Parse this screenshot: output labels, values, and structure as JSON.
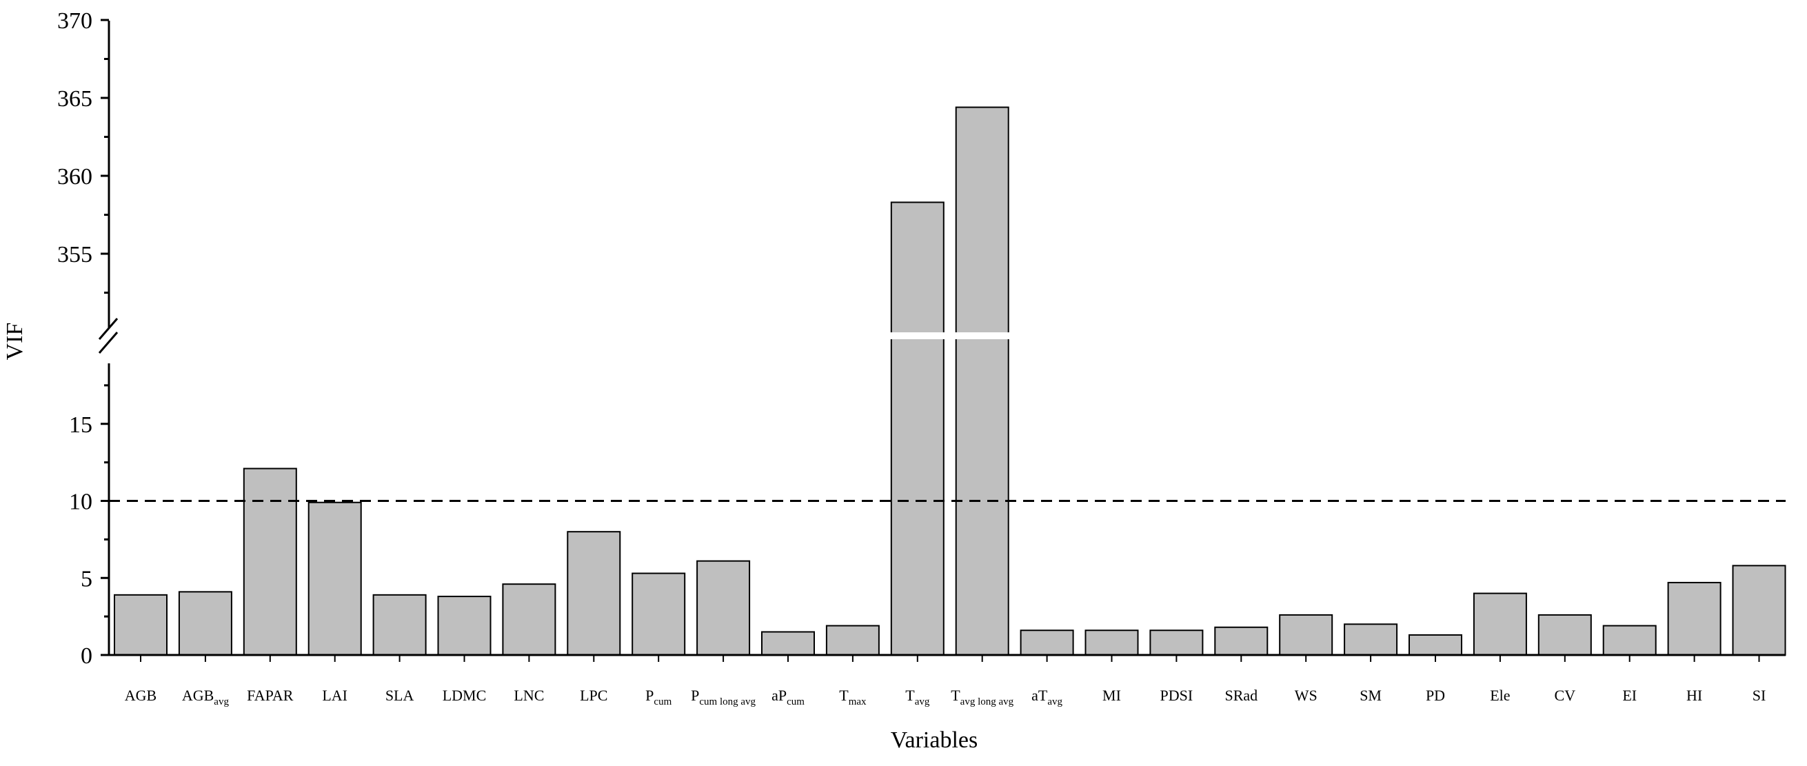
{
  "chart_data": {
    "type": "bar",
    "xlabel": "Variables",
    "ylabel": "VIF",
    "axis_break": {
      "lower_range": [
        0,
        20
      ],
      "upper_range": [
        350,
        370
      ]
    },
    "lower_ticks": [
      0,
      5,
      10,
      15
    ],
    "upper_ticks": [
      355,
      360,
      365,
      370
    ],
    "reference_line": {
      "value": 10,
      "style": "dashed"
    },
    "categories": [
      {
        "main": "AGB",
        "sub": ""
      },
      {
        "main": "AGB",
        "sub": "avg"
      },
      {
        "main": "FAPAR",
        "sub": ""
      },
      {
        "main": "LAI",
        "sub": ""
      },
      {
        "main": "SLA",
        "sub": ""
      },
      {
        "main": "LDMC",
        "sub": ""
      },
      {
        "main": "LNC",
        "sub": ""
      },
      {
        "main": "LPC",
        "sub": ""
      },
      {
        "main": "P",
        "sub": "cum"
      },
      {
        "main": "P",
        "sub": "cum long avg"
      },
      {
        "main": "aP",
        "sub": "cum"
      },
      {
        "main": "T",
        "sub": "max"
      },
      {
        "main": "T",
        "sub": "avg"
      },
      {
        "main": "T",
        "sub": "avg long avg"
      },
      {
        "main": "aT",
        "sub": "avg"
      },
      {
        "main": "MI",
        "sub": ""
      },
      {
        "main": "PDSI",
        "sub": ""
      },
      {
        "main": "SRad",
        "sub": ""
      },
      {
        "main": "WS",
        "sub": ""
      },
      {
        "main": "SM",
        "sub": ""
      },
      {
        "main": "PD",
        "sub": ""
      },
      {
        "main": "Ele",
        "sub": ""
      },
      {
        "main": "CV",
        "sub": ""
      },
      {
        "main": "EI",
        "sub": ""
      },
      {
        "main": "HI",
        "sub": ""
      },
      {
        "main": "SI",
        "sub": ""
      }
    ],
    "values": [
      3.9,
      4.1,
      12.1,
      9.9,
      3.9,
      3.8,
      4.6,
      8.0,
      5.3,
      6.1,
      1.5,
      1.9,
      358.3,
      364.4,
      1.6,
      1.6,
      1.6,
      1.8,
      2.6,
      2.0,
      1.3,
      4.0,
      2.6,
      1.9,
      4.7,
      5.8
    ],
    "colors": {
      "bar_fill": "#bfbfbf",
      "bar_stroke": "#000000"
    }
  }
}
